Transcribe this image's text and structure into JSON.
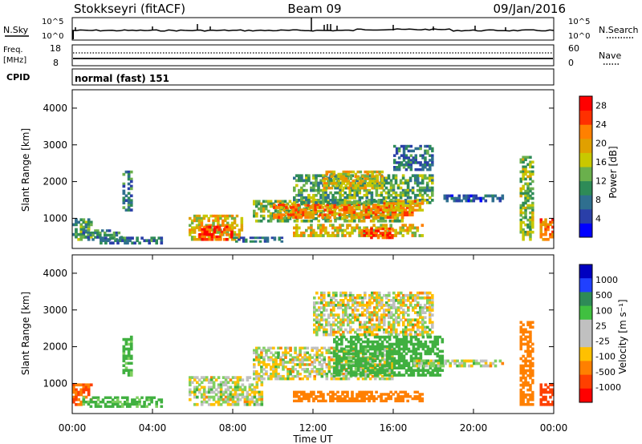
{
  "header": {
    "station": "Stokkseyri (fitACF)",
    "beam": "Beam 09",
    "date": "09/Jan/2016"
  },
  "top_panels": {
    "nsky": {
      "label": "N.Sky",
      "right_label": "N.Search",
      "tick_top": "10^5",
      "tick_bottom": "10^0",
      "right_tick_top": "10^5",
      "right_tick_bottom": "10^0"
    },
    "freq": {
      "label_line1": "Freq.",
      "label_line2": "[MHz]",
      "tick_top": "18",
      "tick_bottom": "8",
      "right_tick_top": "60",
      "right_tick_bottom": "0",
      "right_label": "Nave"
    },
    "cpid": {
      "label": "CPID",
      "value": "normal (fast) 151"
    }
  },
  "colors": {
    "power_scale": [
      "#0000ff",
      "#2a3fa8",
      "#2f6f8f",
      "#2e8b57",
      "#6ab04c",
      "#c8c800",
      "#e0a000",
      "#ff8000",
      "#ff3000",
      "#ff0000"
    ],
    "velocity_scale": [
      "#0000c0",
      "#2040ff",
      "#2e8b57",
      "#40c040",
      "#c0c0c0",
      "#c0c0c0",
      "#ffc000",
      "#ff8000",
      "#ff4000",
      "#ff0000"
    ]
  },
  "chart_data": [
    {
      "type": "heatmap",
      "panel": "power",
      "xlabel": "",
      "ylabel": "Slant Range [km]",
      "xlim": [
        0,
        24
      ],
      "ylim": [
        180,
        4500
      ],
      "yticks": [
        "1000",
        "2000",
        "3000",
        "4000"
      ],
      "colorbar": {
        "label": "Power [dB]",
        "ticks": [
          "4",
          "8",
          "12",
          "16",
          "20",
          "24",
          "28"
        ],
        "range": [
          0,
          30
        ]
      },
      "echo_regions": [
        {
          "t0": 0.0,
          "t1": 1.0,
          "r0": 400,
          "r1": 1000,
          "level": 12
        },
        {
          "t0": 0.5,
          "t1": 2.5,
          "r0": 400,
          "r1": 700,
          "level": 10
        },
        {
          "t0": 1.0,
          "t1": 4.5,
          "r0": 300,
          "r1": 500,
          "level": 8
        },
        {
          "t0": 2.5,
          "t1": 3.0,
          "r0": 1200,
          "r1": 2300,
          "level": 8
        },
        {
          "t0": 5.8,
          "t1": 8.5,
          "r0": 400,
          "r1": 1100,
          "level": 18
        },
        {
          "t0": 6.3,
          "t1": 8.0,
          "r0": 400,
          "r1": 800,
          "level": 26
        },
        {
          "t0": 8.0,
          "t1": 10.5,
          "r0": 350,
          "r1": 500,
          "level": 8
        },
        {
          "t0": 9.0,
          "t1": 16.5,
          "r0": 900,
          "r1": 1500,
          "level": 14
        },
        {
          "t0": 10.0,
          "t1": 17.0,
          "r0": 1000,
          "r1": 1400,
          "level": 22
        },
        {
          "t0": 11.0,
          "t1": 18.0,
          "r0": 1400,
          "r1": 2200,
          "level": 12
        },
        {
          "t0": 12.5,
          "t1": 15.5,
          "r0": 1800,
          "r1": 2300,
          "level": 18
        },
        {
          "t0": 15.5,
          "t1": 17.5,
          "r0": 1200,
          "r1": 1500,
          "level": 20
        },
        {
          "t0": 11.0,
          "t1": 17.5,
          "r0": 500,
          "r1": 850,
          "level": 18
        },
        {
          "t0": 14.5,
          "t1": 16.0,
          "r0": 450,
          "r1": 750,
          "level": 26
        },
        {
          "t0": 16.0,
          "t1": 18.0,
          "r0": 2300,
          "r1": 3000,
          "level": 8
        },
        {
          "t0": 18.5,
          "t1": 21.5,
          "r0": 1450,
          "r1": 1650,
          "level": 6
        },
        {
          "t0": 22.3,
          "t1": 23.0,
          "r0": 400,
          "r1": 2700,
          "level": 14
        },
        {
          "t0": 23.3,
          "t1": 24.0,
          "r0": 400,
          "r1": 1000,
          "level": 24
        }
      ]
    },
    {
      "type": "heatmap",
      "panel": "velocity",
      "xlabel": "Time UT",
      "ylabel": "Slant Range [km]",
      "xlim": [
        0,
        24
      ],
      "ylim": [
        180,
        4500
      ],
      "xticks": [
        "00:00",
        "04:00",
        "08:00",
        "12:00",
        "16:00",
        "20:00",
        "00:00"
      ],
      "yticks": [
        "1000",
        "2000",
        "3000",
        "4000"
      ],
      "colorbar": {
        "label": "Velocity [m s⁻¹]",
        "ticks": [
          "1000",
          "500",
          "100",
          "25",
          "-25",
          "-100",
          "-500",
          "-1000"
        ]
      },
      "echo_regions": [
        {
          "t0": 0.0,
          "t1": 1.0,
          "r0": 400,
          "r1": 1000,
          "level": -300
        },
        {
          "t0": 0.5,
          "t1": 4.5,
          "r0": 350,
          "r1": 650,
          "level": 100
        },
        {
          "t0": 2.5,
          "t1": 3.0,
          "r0": 1200,
          "r1": 2300,
          "level": 100
        },
        {
          "t0": 5.8,
          "t1": 9.5,
          "r0": 400,
          "r1": 1200,
          "level": 0
        },
        {
          "t0": 9.0,
          "t1": 16.0,
          "r0": 1100,
          "r1": 2000,
          "level": 0
        },
        {
          "t0": 12.0,
          "t1": 18.0,
          "r0": 2300,
          "r1": 3500,
          "level": 0
        },
        {
          "t0": 13.0,
          "t1": 18.5,
          "r0": 1200,
          "r1": 2300,
          "level": 150
        },
        {
          "t0": 11.0,
          "t1": 17.5,
          "r0": 500,
          "r1": 800,
          "level": -150
        },
        {
          "t0": 17.0,
          "t1": 21.5,
          "r0": 1450,
          "r1": 1650,
          "level": 0
        },
        {
          "t0": 22.3,
          "t1": 23.0,
          "r0": 400,
          "r1": 2700,
          "level": -200
        },
        {
          "t0": 23.3,
          "t1": 24.0,
          "r0": 400,
          "r1": 1000,
          "level": -600
        }
      ]
    }
  ]
}
